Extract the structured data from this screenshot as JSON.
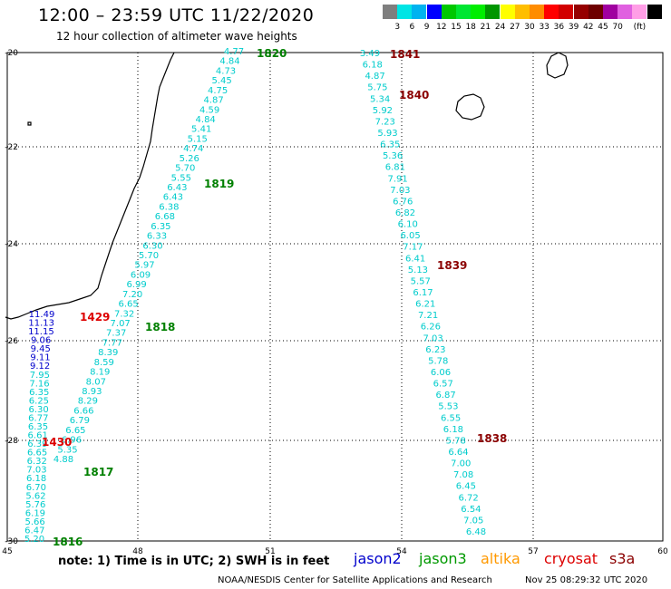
{
  "title": "12:00 – 23:59 UTC 11/22/2020",
  "subtitle": "12 hour collection of altimeter wave heights",
  "colorbar": {
    "colors": [
      "#7f7f7f",
      "#00e5e5",
      "#00b3f0",
      "#0000ff",
      "#00c800",
      "#00e632",
      "#00ee00",
      "#009600",
      "#ffff00",
      "#ffbe00",
      "#ff8c00",
      "#ff0000",
      "#d20000",
      "#960000",
      "#6e0000",
      "#a000a0",
      "#e060e0",
      "#ff9ee6",
      "#000000"
    ],
    "labels": [
      "3",
      "6",
      "9",
      "12",
      "15",
      "18",
      "21",
      "24",
      "27",
      "30",
      "33",
      "36",
      "39",
      "42",
      "45",
      "70",
      "(ft)"
    ]
  },
  "axes": {
    "x_ticks": [
      "45",
      "48",
      "51",
      "54",
      "57",
      "60"
    ],
    "y_ticks": [
      "-20",
      "-22",
      "-24",
      "-26",
      "-28",
      "-30"
    ]
  },
  "tracks": [
    {
      "label": "1816",
      "label_color": "#008000",
      "points": [
        {
          "v": "5.20",
          "c": "#00cccc"
        },
        {
          "v": "6.47",
          "c": "#00cccc"
        },
        {
          "v": "5.66",
          "c": "#00cccc"
        },
        {
          "v": "6.19",
          "c": "#00cccc"
        },
        {
          "v": "5.76",
          "c": "#00cccc"
        },
        {
          "v": "5.62",
          "c": "#00cccc"
        },
        {
          "v": "6.70",
          "c": "#00cccc"
        },
        {
          "v": "6.18",
          "c": "#00cccc"
        },
        {
          "v": "7.03",
          "c": "#00cccc"
        },
        {
          "v": "6.32",
          "c": "#00cccc"
        },
        {
          "v": "6.65",
          "c": "#00cccc"
        },
        {
          "v": "6.39",
          "c": "#00cccc"
        },
        {
          "v": "6.61",
          "c": "#00cccc"
        },
        {
          "v": "6.35",
          "c": "#00cccc"
        },
        {
          "v": "6.77",
          "c": "#00cccc"
        },
        {
          "v": "6.30",
          "c": "#00cccc"
        },
        {
          "v": "6.25",
          "c": "#00cccc"
        },
        {
          "v": "6.35",
          "c": "#00cccc"
        },
        {
          "v": "7.16",
          "c": "#00cccc"
        },
        {
          "v": "7.95",
          "c": "#00cccc"
        },
        {
          "v": "9.12",
          "c": "#0000cc"
        },
        {
          "v": "9.11",
          "c": "#0000cc"
        },
        {
          "v": "9.45",
          "c": "#0000cc"
        },
        {
          "v": "9.06",
          "c": "#0000cc"
        },
        {
          "v": "11.15",
          "c": "#0000cc"
        },
        {
          "v": "11.13",
          "c": "#0000cc"
        },
        {
          "v": "11.49",
          "c": "#0000cc"
        }
      ]
    },
    {
      "label": "1817",
      "label_color": "#008000",
      "points": [
        {
          "v": "4.88",
          "c": "#00cccc"
        },
        {
          "v": "5.35",
          "c": "#00cccc"
        },
        {
          "v": "6.96",
          "c": "#00cccc"
        },
        {
          "v": "6.65",
          "c": "#00cccc"
        },
        {
          "v": "6.79",
          "c": "#00cccc"
        },
        {
          "v": "6.66",
          "c": "#00cccc"
        },
        {
          "v": "8.29",
          "c": "#00cccc"
        },
        {
          "v": "8.93",
          "c": "#00cccc"
        },
        {
          "v": "8.07",
          "c": "#00cccc"
        },
        {
          "v": "8.19",
          "c": "#00cccc"
        },
        {
          "v": "8.59",
          "c": "#00cccc"
        },
        {
          "v": "8.39",
          "c": "#00cccc"
        },
        {
          "v": "7.77",
          "c": "#00cccc"
        },
        {
          "v": "7.37",
          "c": "#00cccc"
        },
        {
          "v": "7.07",
          "c": "#00cccc"
        },
        {
          "v": "7.32",
          "c": "#00cccc"
        },
        {
          "v": "6.65",
          "c": "#00cccc"
        },
        {
          "v": "7.20",
          "c": "#00cccc"
        },
        {
          "v": "6.99",
          "c": "#00cccc"
        },
        {
          "v": "6.09",
          "c": "#00cccc"
        },
        {
          "v": "5.97",
          "c": "#00cccc"
        },
        {
          "v": "5.70",
          "c": "#00cccc"
        },
        {
          "v": "6.30",
          "c": "#00cccc"
        },
        {
          "v": "6.33",
          "c": "#00cccc"
        },
        {
          "v": "6.35",
          "c": "#00cccc"
        },
        {
          "v": "6.68",
          "c": "#00cccc"
        },
        {
          "v": "6.38",
          "c": "#00cccc"
        },
        {
          "v": "6.43",
          "c": "#00cccc"
        },
        {
          "v": "6.43",
          "c": "#00cccc"
        },
        {
          "v": "5.55",
          "c": "#00cccc"
        },
        {
          "v": "5.70",
          "c": "#00cccc"
        },
        {
          "v": "5.26",
          "c": "#00cccc"
        },
        {
          "v": "4.74",
          "c": "#00cccc"
        },
        {
          "v": "5.15",
          "c": "#00cccc"
        },
        {
          "v": "5.41",
          "c": "#00cccc"
        },
        {
          "v": "4.84",
          "c": "#00cccc"
        },
        {
          "v": "4.59",
          "c": "#00cccc"
        },
        {
          "v": "4.87",
          "c": "#00cccc"
        },
        {
          "v": "4.75",
          "c": "#00cccc"
        },
        {
          "v": "5.45",
          "c": "#00cccc"
        },
        {
          "v": "4.73",
          "c": "#00cccc"
        },
        {
          "v": "4.84",
          "c": "#00cccc"
        },
        {
          "v": "4.77",
          "c": "#00cccc"
        }
      ]
    },
    {
      "label": "1838",
      "label_color": "#8b0000",
      "points": [
        {
          "v": "3.49",
          "c": "#00cccc"
        },
        {
          "v": "6.18",
          "c": "#00cccc"
        },
        {
          "v": "4.87",
          "c": "#00cccc"
        },
        {
          "v": "5.75",
          "c": "#00cccc"
        },
        {
          "v": "5.34",
          "c": "#00cccc"
        },
        {
          "v": "5.92",
          "c": "#00cccc"
        },
        {
          "v": "7.23",
          "c": "#00cccc"
        },
        {
          "v": "5.93",
          "c": "#00cccc"
        },
        {
          "v": "6.35",
          "c": "#00cccc"
        },
        {
          "v": "5.36",
          "c": "#00cccc"
        },
        {
          "v": "6.81",
          "c": "#00cccc"
        },
        {
          "v": "7.91",
          "c": "#00cccc"
        },
        {
          "v": "7.03",
          "c": "#00cccc"
        },
        {
          "v": "6.76",
          "c": "#00cccc"
        },
        {
          "v": "6.82",
          "c": "#00cccc"
        },
        {
          "v": "6.10",
          "c": "#00cccc"
        },
        {
          "v": "6.05",
          "c": "#00cccc"
        },
        {
          "v": "7.17",
          "c": "#00cccc"
        },
        {
          "v": "6.41",
          "c": "#00cccc"
        },
        {
          "v": "5.13",
          "c": "#00cccc"
        },
        {
          "v": "5.57",
          "c": "#00cccc"
        },
        {
          "v": "6.17",
          "c": "#00cccc"
        },
        {
          "v": "6.21",
          "c": "#00cccc"
        },
        {
          "v": "7.21",
          "c": "#00cccc"
        },
        {
          "v": "6.26",
          "c": "#00cccc"
        },
        {
          "v": "7.03",
          "c": "#00cccc"
        },
        {
          "v": "6.23",
          "c": "#00cccc"
        },
        {
          "v": "5.78",
          "c": "#00cccc"
        },
        {
          "v": "6.06",
          "c": "#00cccc"
        },
        {
          "v": "6.57",
          "c": "#00cccc"
        },
        {
          "v": "6.87",
          "c": "#00cccc"
        },
        {
          "v": "5.53",
          "c": "#00cccc"
        },
        {
          "v": "6.55",
          "c": "#00cccc"
        },
        {
          "v": "6.18",
          "c": "#00cccc"
        },
        {
          "v": "5.78",
          "c": "#00cccc"
        },
        {
          "v": "6.64",
          "c": "#00cccc"
        },
        {
          "v": "7.00",
          "c": "#00cccc"
        },
        {
          "v": "7.08",
          "c": "#00cccc"
        },
        {
          "v": "6.45",
          "c": "#00cccc"
        },
        {
          "v": "6.72",
          "c": "#00cccc"
        },
        {
          "v": "6.54",
          "c": "#00cccc"
        },
        {
          "v": "7.05",
          "c": "#00cccc"
        },
        {
          "v": "6.48",
          "c": "#00cccc"
        }
      ]
    }
  ],
  "time_labels": [
    {
      "text": "1816",
      "color": "#008000"
    },
    {
      "text": "1817",
      "color": "#008000"
    },
    {
      "text": "1818",
      "color": "#008000"
    },
    {
      "text": "1819",
      "color": "#008000"
    },
    {
      "text": "1820",
      "color": "#008000"
    },
    {
      "text": "1429",
      "color": "#dd0000"
    },
    {
      "text": "1430",
      "color": "#dd0000"
    },
    {
      "text": "1838",
      "color": "#8b0000"
    },
    {
      "text": "1839",
      "color": "#8b0000"
    },
    {
      "text": "1840",
      "color": "#8b0000"
    },
    {
      "text": "1841",
      "color": "#8b0000"
    }
  ],
  "note": "note:  1) Time is in UTC;  2) SWH is in feet",
  "satellites": [
    {
      "name": "jason2",
      "color": "#0000cc"
    },
    {
      "name": "jason3",
      "color": "#009900"
    },
    {
      "name": "altika",
      "color": "#ff9900"
    },
    {
      "name": "cryosat",
      "color": "#dd0000"
    },
    {
      "name": "s3a",
      "color": "#8b0000"
    }
  ],
  "credit": "NOAA/NESDIS Center for Satellite Applications and Research",
  "timestamp": "Nov 25 08:29:32 UTC 2020"
}
